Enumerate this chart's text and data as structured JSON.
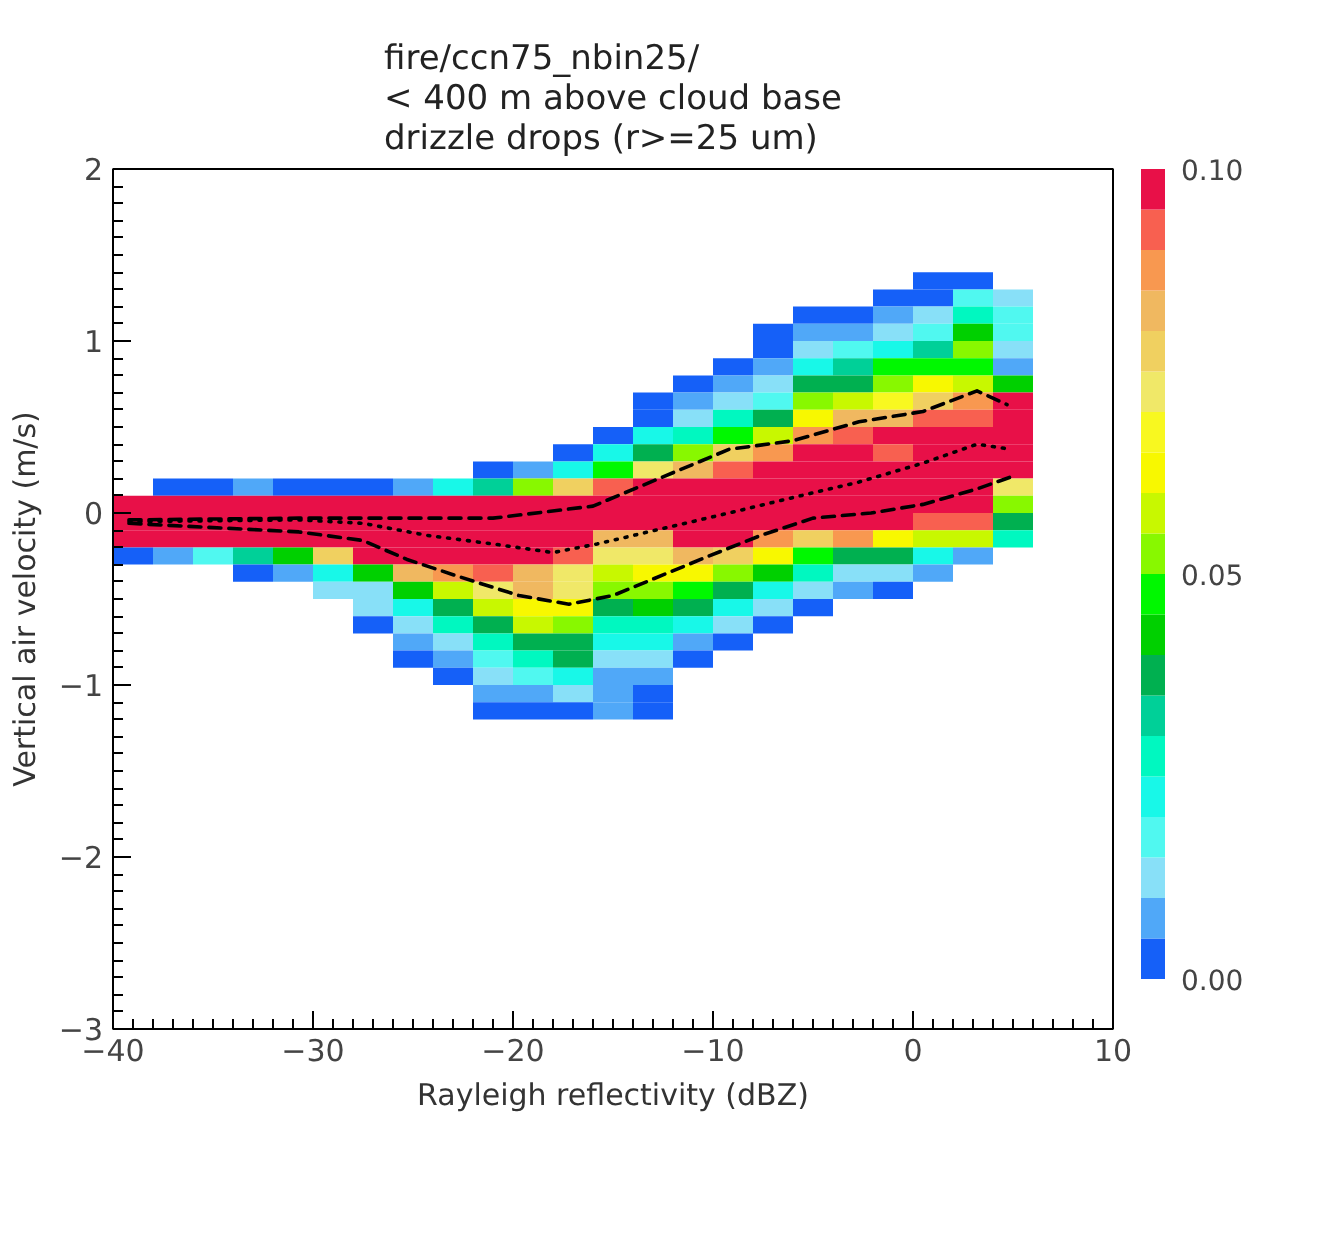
{
  "chart_data": {
    "type": "heatmap",
    "title": "fire/ccn75_nbin25/\n< 400 m above cloud base\ndrizzle drops (r>=25 um)",
    "xlabel": "Rayleigh reflectivity (dBZ)",
    "ylabel": "Vertical air velocity (m/s)",
    "xlim": [
      -40,
      10
    ],
    "xticks": [
      -40,
      -30,
      -20,
      -10,
      0,
      10
    ],
    "ylim": [
      -3,
      2
    ],
    "yticks": [
      -3,
      -2,
      -1,
      0,
      1,
      2
    ],
    "x": [
      -39,
      -37,
      -35,
      -33,
      -31,
      -29,
      -27,
      -25,
      -23,
      -21,
      -19,
      -17,
      -15,
      -13,
      -11,
      -9,
      -7,
      -5,
      -3,
      -1,
      1,
      3,
      5
    ],
    "y": [
      1.35,
      1.25,
      1.15,
      1.05,
      0.95,
      0.85,
      0.75,
      0.65,
      0.55,
      0.45,
      0.35,
      0.25,
      0.15,
      0.05,
      -0.05,
      -0.15,
      -0.25,
      -0.35,
      -0.45,
      -0.55,
      -0.65,
      -0.75,
      -0.85,
      -0.95,
      -1.05,
      -1.15
    ],
    "clim": [
      0,
      0.1
    ],
    "cticks": [
      {
        "value": 0,
        "label": "0.00"
      },
      {
        "value": 0.05,
        "label": "0.05"
      },
      {
        "value": 0.1,
        "label": "0.10"
      }
    ],
    "colors": [
      "#1560f8",
      "#50a8f8",
      "#88e0f8",
      "#50f8f0",
      "#18f8e8",
      "#00f8c0",
      "#00d098",
      "#00b050",
      "#00d000",
      "#00f800",
      "#88f800",
      "#c8f800",
      "#f8f800",
      "#f8f820",
      "#f0e868",
      "#f0d060",
      "#f0b860",
      "#f89850",
      "#f86050",
      "#e81048"
    ],
    "cells": [
      [
        null,
        null,
        null,
        null,
        null,
        null,
        null,
        null,
        null,
        null,
        null,
        null,
        null,
        null,
        null,
        null,
        null,
        null,
        null,
        null,
        0.0025,
        0.0025,
        null
      ],
      [
        null,
        null,
        null,
        null,
        null,
        null,
        null,
        null,
        null,
        null,
        null,
        null,
        null,
        null,
        null,
        null,
        null,
        null,
        null,
        0.0025,
        0.0025,
        0.0175,
        0.0125
      ],
      [
        null,
        null,
        null,
        null,
        null,
        null,
        null,
        null,
        null,
        null,
        null,
        null,
        null,
        null,
        null,
        null,
        null,
        0.0025,
        0.0025,
        0.0075,
        0.0125,
        0.0275,
        0.0175
      ],
      [
        null,
        null,
        null,
        null,
        null,
        null,
        null,
        null,
        null,
        null,
        null,
        null,
        null,
        null,
        null,
        null,
        0.0025,
        0.0075,
        0.0075,
        0.0125,
        0.0175,
        0.0425,
        0.0175
      ],
      [
        null,
        null,
        null,
        null,
        null,
        null,
        null,
        null,
        null,
        null,
        null,
        null,
        null,
        null,
        null,
        null,
        0.0025,
        0.0125,
        0.0175,
        0.0225,
        0.0325,
        0.0525,
        0.0125
      ],
      [
        null,
        null,
        null,
        null,
        null,
        null,
        null,
        null,
        null,
        null,
        null,
        null,
        null,
        null,
        null,
        0.0025,
        0.0075,
        0.0225,
        0.0325,
        0.0475,
        0.0475,
        0.0475,
        0.0075
      ],
      [
        null,
        null,
        null,
        null,
        null,
        null,
        null,
        null,
        null,
        null,
        null,
        null,
        null,
        null,
        0.0025,
        0.0075,
        0.0125,
        0.0375,
        0.0375,
        0.0525,
        0.0625,
        0.0575,
        0.0425
      ],
      [
        null,
        null,
        null,
        null,
        null,
        null,
        null,
        null,
        null,
        null,
        null,
        null,
        null,
        0.0025,
        0.0075,
        0.0125,
        0.0175,
        0.0525,
        0.0575,
        0.0675,
        0.0775,
        0.0875,
        0.0975
      ],
      [
        null,
        null,
        null,
        null,
        null,
        null,
        null,
        null,
        null,
        null,
        null,
        null,
        null,
        0.0025,
        0.0125,
        0.0275,
        0.0375,
        0.0625,
        0.0825,
        0.0825,
        0.0925,
        0.0925,
        0.0975
      ],
      [
        null,
        null,
        null,
        null,
        null,
        null,
        null,
        null,
        null,
        null,
        null,
        null,
        0.0025,
        0.0225,
        0.0275,
        0.0475,
        0.0575,
        0.0875,
        0.0925,
        0.0975,
        0.0975,
        0.0975,
        0.0975
      ],
      [
        null,
        null,
        null,
        null,
        null,
        null,
        null,
        null,
        null,
        null,
        null,
        0.0025,
        0.0225,
        0.0375,
        0.0525,
        0.0775,
        0.0875,
        0.0975,
        0.0975,
        0.0925,
        0.0975,
        0.0975,
        0.0975
      ],
      [
        null,
        null,
        null,
        null,
        null,
        null,
        null,
        null,
        null,
        0.0025,
        0.0075,
        0.0225,
        0.0475,
        0.0725,
        0.0825,
        0.0925,
        0.0975,
        0.0975,
        0.0975,
        0.0975,
        0.0975,
        0.0975,
        0.0975
      ],
      [
        null,
        0.0025,
        0.0025,
        0.0075,
        0.0025,
        0.0025,
        0.0025,
        0.0075,
        0.0225,
        0.0325,
        0.0525,
        0.0775,
        0.0925,
        0.0975,
        0.0975,
        0.0975,
        0.0975,
        0.0975,
        0.0975,
        0.0975,
        0.0975,
        0.0975,
        0.0725
      ],
      [
        0.0975,
        0.0975,
        0.0975,
        0.0975,
        0.0975,
        0.0975,
        0.0975,
        0.0975,
        0.0975,
        0.0975,
        0.0975,
        0.0975,
        0.0975,
        0.0975,
        0.0975,
        0.0975,
        0.0975,
        0.0975,
        0.0975,
        0.0975,
        0.0975,
        0.0975,
        0.0525
      ],
      [
        0.0975,
        0.0975,
        0.0975,
        0.0975,
        0.0975,
        0.0975,
        0.0975,
        0.0975,
        0.0975,
        0.0975,
        0.0975,
        0.0975,
        0.0975,
        0.0975,
        0.0975,
        0.0975,
        0.0975,
        0.0975,
        0.0975,
        0.0975,
        0.0925,
        0.0925,
        0.0375
      ],
      [
        0.0975,
        0.0975,
        0.0975,
        0.0975,
        0.0975,
        0.0975,
        0.0975,
        0.0975,
        0.0975,
        0.0975,
        0.0975,
        0.0975,
        0.0825,
        0.0825,
        0.0975,
        0.0975,
        0.0875,
        0.0775,
        0.0875,
        0.0625,
        0.0575,
        0.0575,
        0.0275
      ],
      [
        0.0025,
        0.0075,
        0.0175,
        0.0325,
        0.0425,
        0.0775,
        0.0975,
        0.0975,
        0.0975,
        0.0975,
        0.0975,
        0.0925,
        0.0725,
        0.0725,
        0.0825,
        0.0775,
        0.0625,
        0.0475,
        0.0375,
        0.0375,
        0.0225,
        0.0075,
        null
      ],
      [
        null,
        null,
        null,
        0.0025,
        0.0075,
        0.0225,
        0.0425,
        0.0825,
        0.0875,
        0.0925,
        0.0825,
        0.0725,
        0.0575,
        0.0625,
        0.0625,
        0.0525,
        0.0425,
        0.0275,
        0.0125,
        0.0125,
        0.0075,
        null,
        null
      ],
      [
        null,
        null,
        null,
        null,
        null,
        0.0125,
        0.0125,
        0.0425,
        0.0575,
        0.0725,
        0.0825,
        0.0725,
        0.0525,
        0.0525,
        0.0475,
        0.0375,
        0.0225,
        0.0125,
        0.0075,
        0.0025,
        null,
        null,
        null
      ],
      [
        null,
        null,
        null,
        null,
        null,
        null,
        0.0125,
        0.0225,
        0.0375,
        0.0575,
        0.0625,
        0.0625,
        0.0375,
        0.0425,
        0.0375,
        0.0225,
        0.0125,
        0.0025,
        null,
        null,
        null,
        null,
        null
      ],
      [
        null,
        null,
        null,
        null,
        null,
        null,
        0.0025,
        0.0125,
        0.0275,
        0.0375,
        0.0575,
        0.0525,
        0.0275,
        0.0275,
        0.0225,
        0.0125,
        0.0025,
        null,
        null,
        null,
        null,
        null,
        null
      ],
      [
        null,
        null,
        null,
        null,
        null,
        null,
        null,
        0.0075,
        0.0125,
        0.0275,
        0.0375,
        0.0375,
        0.0225,
        0.0225,
        0.0075,
        0.0025,
        null,
        null,
        null,
        null,
        null,
        null,
        null
      ],
      [
        null,
        null,
        null,
        null,
        null,
        null,
        null,
        0.0025,
        0.0075,
        0.0175,
        0.0275,
        0.0375,
        0.0125,
        0.0125,
        0.0025,
        null,
        null,
        null,
        null,
        null,
        null,
        null,
        null
      ],
      [
        null,
        null,
        null,
        null,
        null,
        null,
        null,
        null,
        0.0025,
        0.0125,
        0.0175,
        0.0225,
        0.0075,
        0.0075,
        null,
        null,
        null,
        null,
        null,
        null,
        null,
        null,
        null
      ],
      [
        null,
        null,
        null,
        null,
        null,
        null,
        null,
        null,
        null,
        0.0075,
        0.0075,
        0.0125,
        0.0075,
        0.0025,
        null,
        null,
        null,
        null,
        null,
        null,
        null,
        null,
        null
      ],
      [
        null,
        null,
        null,
        null,
        null,
        null,
        null,
        null,
        null,
        0.0025,
        0.0025,
        0.0025,
        0.0075,
        0.0025,
        null,
        null,
        null,
        null,
        null,
        null,
        null,
        null,
        null
      ]
    ],
    "series": [
      {
        "type": "line",
        "color": "#000000",
        "line_style": "dashed",
        "x": [
          -39.2,
          -30.7,
          -27.5,
          -21,
          -16,
          -12.5,
          -9.2,
          -6,
          -2.7,
          0.5,
          3.2,
          4.7
        ],
        "values": [
          -0.04,
          -0.03,
          -0.03,
          -0.03,
          0.04,
          0.21,
          0.37,
          0.42,
          0.53,
          0.59,
          0.71,
          0.63
        ]
      },
      {
        "type": "line",
        "color": "#000000",
        "line_style": "dashed",
        "x": [
          -39.2,
          -30.7,
          -27.5,
          -25.3,
          -22.7,
          -19.7,
          -17.2,
          -15,
          -12.5,
          -10.2,
          -7.6,
          -5,
          -2.1,
          0.5,
          3.2,
          4.9
        ],
        "values": [
          -0.06,
          -0.11,
          -0.16,
          -0.27,
          -0.37,
          -0.48,
          -0.53,
          -0.48,
          -0.36,
          -0.25,
          -0.13,
          -0.03,
          0.0,
          0.05,
          0.14,
          0.21
        ]
      },
      {
        "type": "line",
        "color": "#000000",
        "line_style": "dotted",
        "x": [
          -39.2,
          -30.7,
          -27.5,
          -24.3,
          -21,
          -18,
          -15.8,
          -12.5,
          -9.2,
          -6,
          -2.7,
          0.5,
          3.2,
          4.9
        ],
        "values": [
          -0.05,
          -0.04,
          -0.06,
          -0.13,
          -0.18,
          -0.23,
          -0.18,
          -0.09,
          0.0,
          0.09,
          0.18,
          0.29,
          0.4,
          0.37
        ]
      }
    ]
  }
}
